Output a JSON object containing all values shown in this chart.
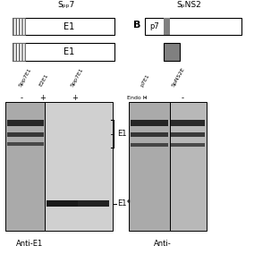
{
  "fig_width": 2.84,
  "fig_height": 2.84,
  "bg_color": "#ffffff",
  "colors": {
    "black": "#000000",
    "white": "#ffffff",
    "light_grey": "#d0d0d0",
    "mid_grey": "#888888",
    "dark_grey": "#555555",
    "hatch_grey": "#808080"
  },
  "panel_A_title": "Spp7",
  "panel_B_title": "SpNS2",
  "anti_E1_label": "Anti-E1",
  "anti_right_label": "Anti-",
  "endo_h_label": "Endo H",
  "gel_A_labels": [
    "Spp7E1",
    "E2E1",
    "Spp7E1"
  ],
  "gel_A_pm": [
    "-",
    "+",
    "+"
  ],
  "gel_B_labels": [
    "p7E1",
    "SpNS2E"
  ],
  "gel_B_pm": [
    "-",
    "-"
  ],
  "E1_bracket_label": "E1",
  "E1star_label": "E1*",
  "B_marker": "B"
}
